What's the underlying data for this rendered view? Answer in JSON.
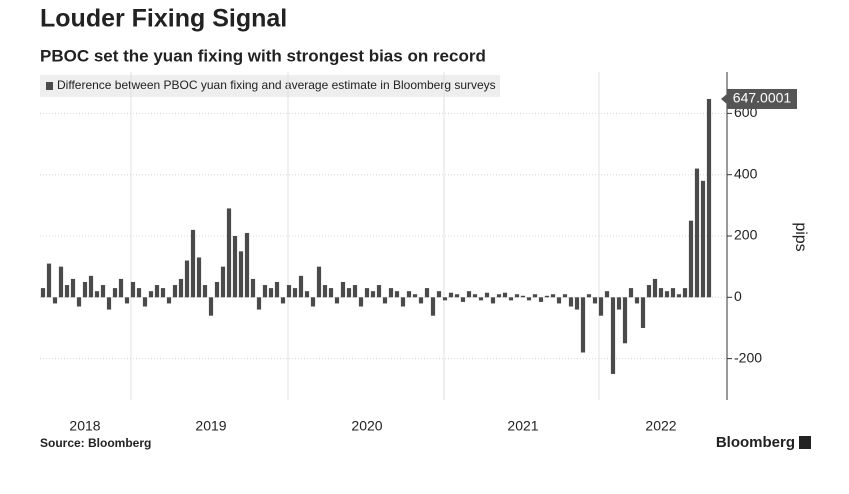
{
  "chart_data": {
    "type": "bar",
    "title": "Louder Fixing Signal",
    "subtitle": "PBOC set the yuan fixing with strongest bias on record",
    "legend": "Difference between PBOC yuan fixing and average estimate in Bloomberg surveys",
    "ylabel": "pips",
    "source": "Source: Bloomberg",
    "brand": "Bloomberg",
    "color": "#4a4a4a",
    "grid": true,
    "ylim": [
      -335,
      735
    ],
    "yticks": [
      -200,
      0,
      200,
      400,
      600
    ],
    "categories": [
      null,
      null,
      null,
      null,
      null,
      null,
      null,
      "2018",
      null,
      null,
      null,
      null,
      null,
      null,
      null,
      null,
      null,
      null,
      null,
      null,
      null,
      null,
      null,
      null,
      null,
      null,
      null,
      null,
      "2019",
      null,
      null,
      null,
      null,
      null,
      null,
      null,
      null,
      null,
      null,
      null,
      null,
      null,
      null,
      null,
      null,
      null,
      null,
      null,
      null,
      null,
      null,
      null,
      null,
      null,
      "2020",
      null,
      null,
      null,
      null,
      null,
      null,
      null,
      null,
      null,
      null,
      null,
      null,
      null,
      null,
      null,
      null,
      null,
      null,
      null,
      null,
      null,
      null,
      null,
      null,
      null,
      "2021",
      null,
      null,
      null,
      null,
      null,
      null,
      null,
      null,
      null,
      null,
      null,
      null,
      null,
      null,
      null,
      null,
      null,
      null,
      null,
      null,
      null,
      null,
      "2022",
      null,
      null,
      null,
      null,
      null,
      null,
      null,
      null
    ],
    "values": [
      30,
      110,
      -20,
      100,
      40,
      60,
      -30,
      50,
      70,
      20,
      40,
      -40,
      30,
      60,
      -20,
      50,
      30,
      -30,
      20,
      40,
      30,
      -20,
      40,
      60,
      120,
      220,
      130,
      40,
      -60,
      50,
      100,
      290,
      200,
      150,
      210,
      60,
      -40,
      40,
      30,
      50,
      -20,
      40,
      30,
      70,
      20,
      -30,
      100,
      40,
      30,
      -20,
      50,
      30,
      40,
      -30,
      30,
      20,
      40,
      -20,
      30,
      20,
      -30,
      20,
      10,
      -20,
      30,
      -60,
      20,
      -10,
      15,
      10,
      -15,
      20,
      10,
      -10,
      15,
      -20,
      10,
      15,
      -10,
      10,
      5,
      -10,
      10,
      -15,
      5,
      10,
      -20,
      10,
      -30,
      -40,
      -180,
      10,
      -20,
      -60,
      20,
      -250,
      -40,
      -150,
      30,
      -20,
      -100,
      40,
      60,
      30,
      20,
      30,
      10,
      30,
      250,
      420,
      380,
      647.0001
    ]
  }
}
